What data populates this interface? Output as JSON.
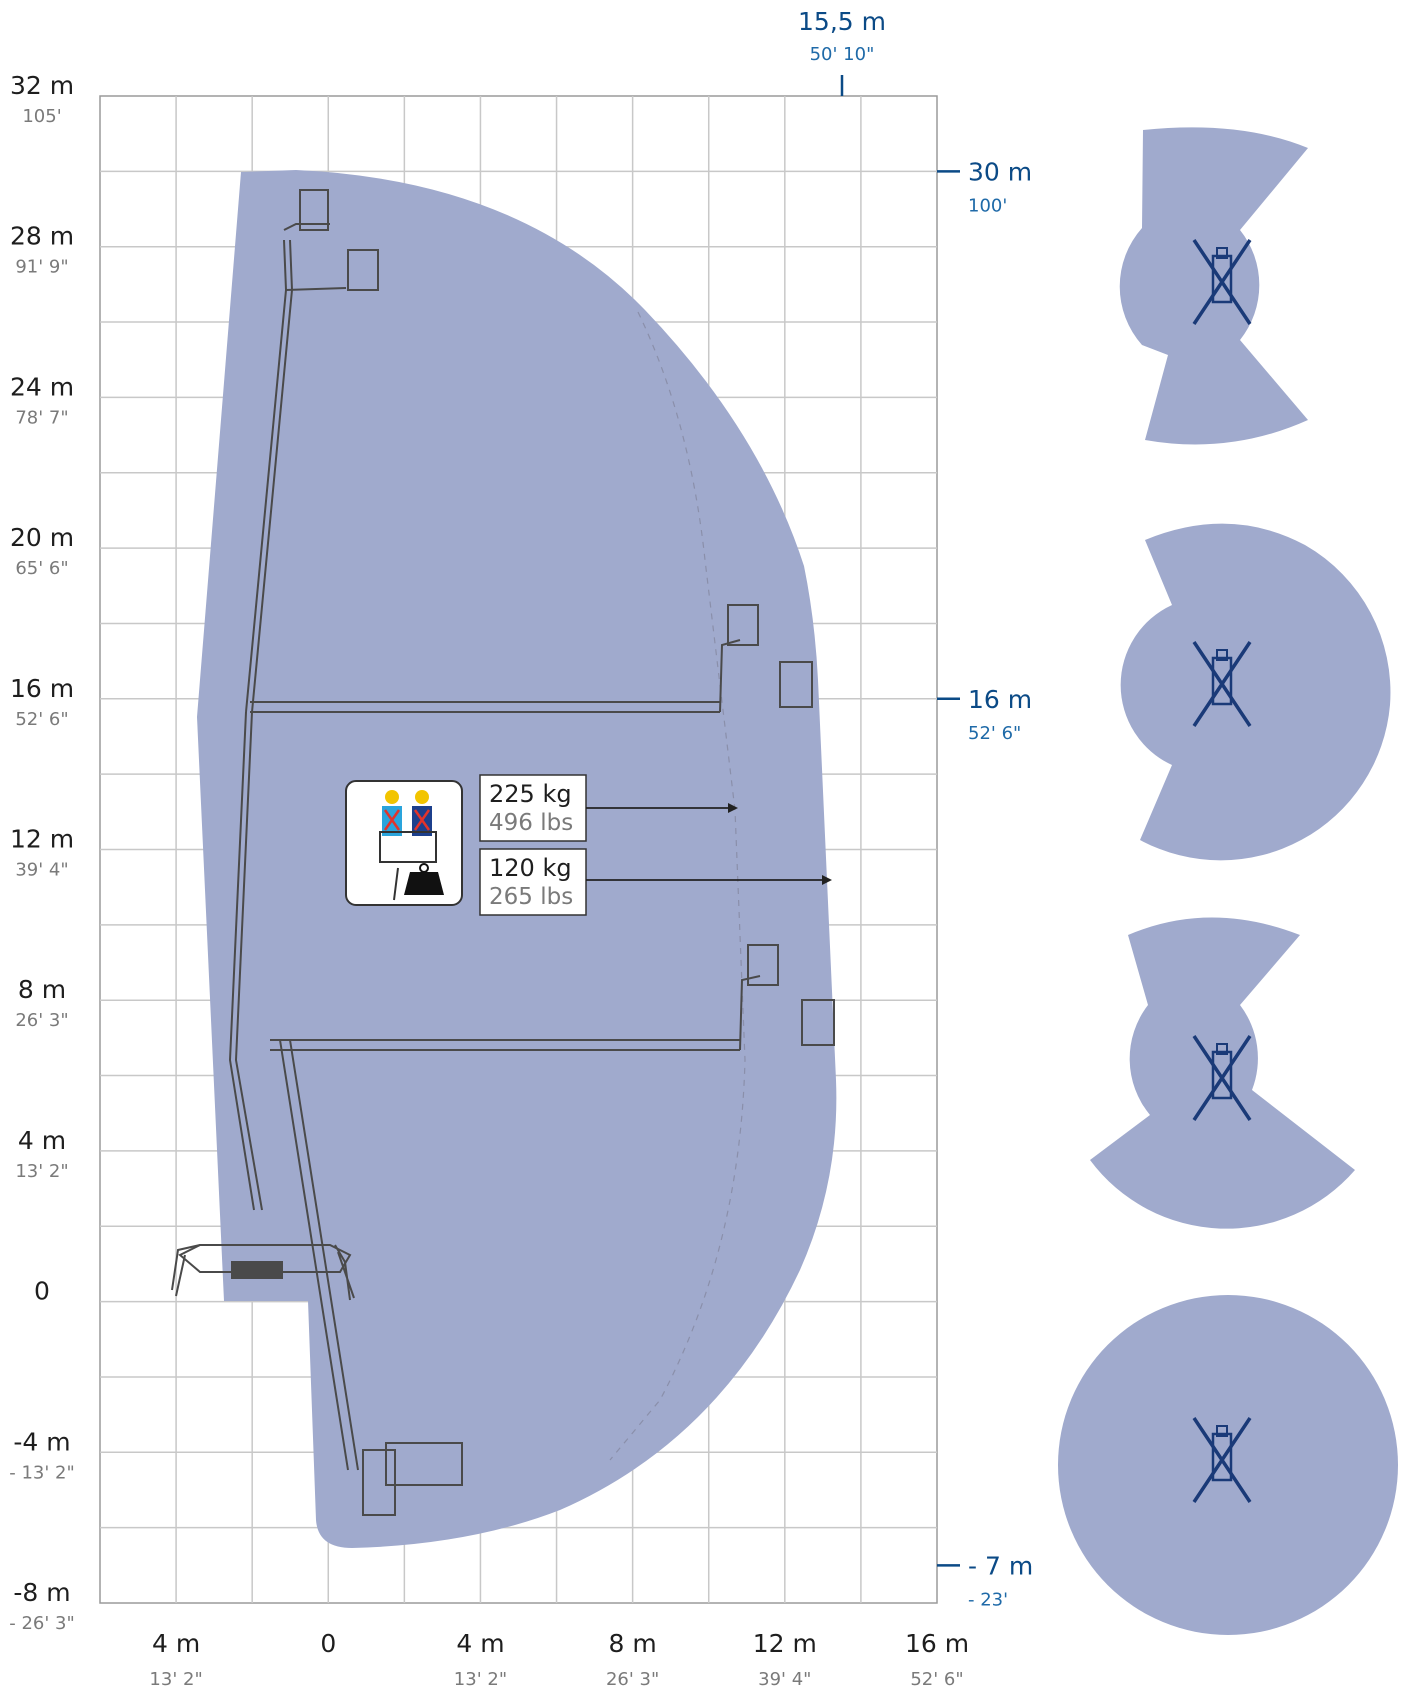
{
  "y_axis": [
    {
      "main": "32 m",
      "sub": "105'"
    },
    {
      "main": "28 m",
      "sub": "91' 9\""
    },
    {
      "main": "24 m",
      "sub": "78' 7\""
    },
    {
      "main": "20 m",
      "sub": "65' 6\""
    },
    {
      "main": "16 m",
      "sub": "52' 6\""
    },
    {
      "main": "12 m",
      "sub": "39' 4\""
    },
    {
      "main": "8 m",
      "sub": "26' 3\""
    },
    {
      "main": "4 m",
      "sub": "13' 2\""
    },
    {
      "main": "0",
      "sub": ""
    },
    {
      "main": "-4 m",
      "sub": "- 13' 2\""
    },
    {
      "main": "-8 m",
      "sub": "- 26' 3\""
    }
  ],
  "x_axis": [
    {
      "main": "4 m",
      "sub": "13' 2\""
    },
    {
      "main": "0",
      "sub": ""
    },
    {
      "main": "4 m",
      "sub": "13' 2\""
    },
    {
      "main": "8 m",
      "sub": "26' 3\""
    },
    {
      "main": "12 m",
      "sub": "39' 4\""
    },
    {
      "main": "16 m",
      "sub": "52' 6\""
    }
  ],
  "right_markers": [
    {
      "main": "30 m",
      "sub": "100'"
    },
    {
      "main": "16 m",
      "sub": "52' 6\""
    },
    {
      "main": "- 7 m",
      "sub": "- 23'"
    }
  ],
  "max_outreach": {
    "main": "15,5 m",
    "sub": "50' 10\""
  },
  "loads": [
    {
      "kg": "225 kg",
      "lbs": "496 lbs"
    },
    {
      "kg": "120 kg",
      "lbs": "265 lbs"
    }
  ],
  "colors": {
    "envelope": "#a0aacd",
    "grid": "#c8c8c8",
    "machine": "#4a4a4a",
    "marker_blue": "#0b4a86",
    "outrigger_blue": "#1a3a78",
    "worker_a": "#2aa4dc",
    "worker_b": "#1c3f8c",
    "helmet": "#f2c400",
    "cross_red": "#e2332b"
  },
  "icons": [
    "workers-in-basket-icon",
    "weight-icon",
    "outrigger-top-view-icon"
  ]
}
